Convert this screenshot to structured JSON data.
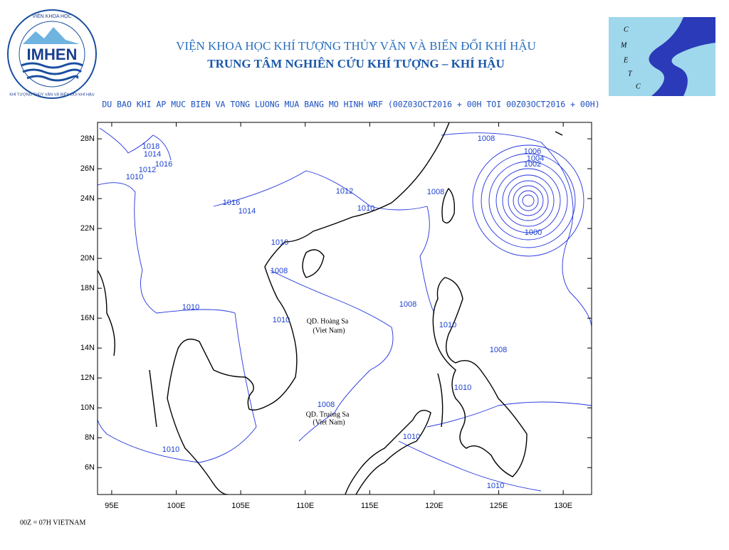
{
  "header": {
    "line1": "VIỆN KHOA HỌC KHÍ TƯỢNG THỦY VĂN VÀ BIẾN ĐỔI KHÍ HẬU",
    "line2": "TRUNG TÂM NGHIÊN CỨU KHÍ TƯỢNG – KHÍ HẬU"
  },
  "logo_left": {
    "name": "IMHEN",
    "top_text": "VIỆN KHOA HỌC",
    "ring_text": "KHÍ TƯỢNG THỦY VĂN VÀ BIẾN ĐỔI KHÍ HẬU"
  },
  "logo_right": {
    "letters": [
      "C",
      "M",
      "E",
      "T",
      "C"
    ]
  },
  "map": {
    "title": "DU BAO KHI AP MUC BIEN VA TONG LUONG MUA BANG MO HINH WRF (00Z03OCT2016 + 00H TOI 00Z03OCT2016 + 00H)",
    "xlim": [
      93.9,
      132.2
    ],
    "ylim": [
      4.2,
      29.1
    ],
    "xticks": [
      {
        "value": 95,
        "label": "95E"
      },
      {
        "value": 100,
        "label": "100E"
      },
      {
        "value": 105,
        "label": "105E"
      },
      {
        "value": 110,
        "label": "110E"
      },
      {
        "value": 115,
        "label": "115E"
      },
      {
        "value": 120,
        "label": "120E"
      },
      {
        "value": 125,
        "label": "125E"
      },
      {
        "value": 130,
        "label": "130E"
      }
    ],
    "yticks": [
      {
        "value": 6,
        "label": "6N"
      },
      {
        "value": 8,
        "label": "8N"
      },
      {
        "value": 10,
        "label": "10N"
      },
      {
        "value": 12,
        "label": "12N"
      },
      {
        "value": 14,
        "label": "14N"
      },
      {
        "value": 16,
        "label": "16N"
      },
      {
        "value": 18,
        "label": "18N"
      },
      {
        "value": 20,
        "label": "20N"
      },
      {
        "value": 22,
        "label": "22N"
      },
      {
        "value": 24,
        "label": "24N"
      },
      {
        "value": 26,
        "label": "26N"
      },
      {
        "value": 28,
        "label": "28N"
      }
    ],
    "contour_labels": [
      1018,
      1014,
      1016,
      1012,
      1010,
      1016,
      1014,
      1012,
      1010,
      1010,
      1008,
      1008,
      1008,
      1006,
      1004,
      1002,
      1000,
      1008,
      1010,
      1010,
      1010,
      1008,
      1010,
      1008,
      1010,
      1010,
      1010
    ],
    "places": [
      "QD. Hoàng Sa",
      "(Viet Nam)",
      "QD. Truòng Sa",
      "(Viet Nam)"
    ]
  },
  "footer": "00Z = 07H VIETNAM"
}
